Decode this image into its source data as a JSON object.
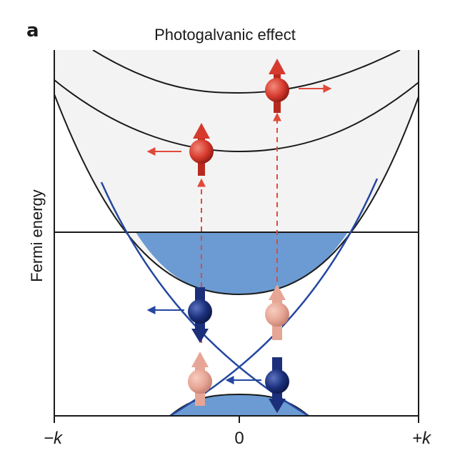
{
  "panel_letter": "a",
  "title": "Photogalvanic effect",
  "ylabel": "Fermi energy",
  "x_ticks": {
    "left": "−k",
    "center": "0",
    "right": "+k"
  },
  "colors": {
    "axis": "#1a1a1a",
    "conduction_fill": "#f3f3f3",
    "filled_band": "#6b9bd2",
    "dirac_cone": "#2447a0",
    "excited_electron": "#d63a2e",
    "spin_down_electron": "#1b2f7a",
    "spin_up_electron": "#e6a595",
    "transition_arrow": "#e04a3a",
    "blue_arrow": "#2447a0"
  },
  "icons": [
    "spin-up-electron-icon",
    "spin-down-electron-icon",
    "momentum-arrow-icon",
    "optical-transition-arrow-icon"
  ]
}
